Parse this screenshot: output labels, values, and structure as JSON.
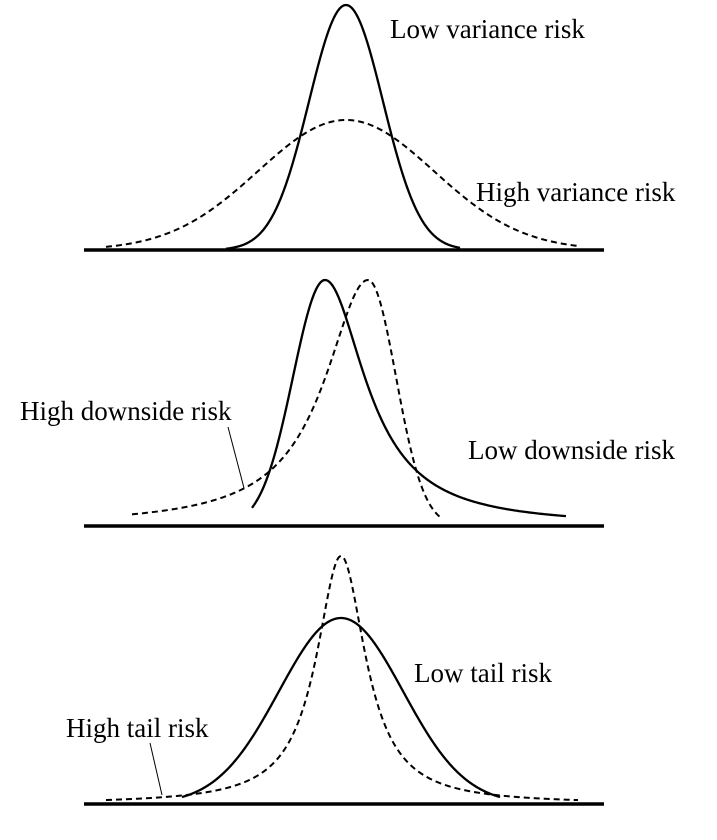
{
  "panels": [
    {
      "solid_label": "Low variance risk",
      "dashed_label": "High variance risk"
    },
    {
      "dashed_label": "High downside risk",
      "solid_label": "Low downside risk"
    },
    {
      "solid_label": "Low tail risk",
      "dashed_label": "High tail risk"
    }
  ],
  "colors": {
    "line": "#000000",
    "background": "#ffffff"
  }
}
